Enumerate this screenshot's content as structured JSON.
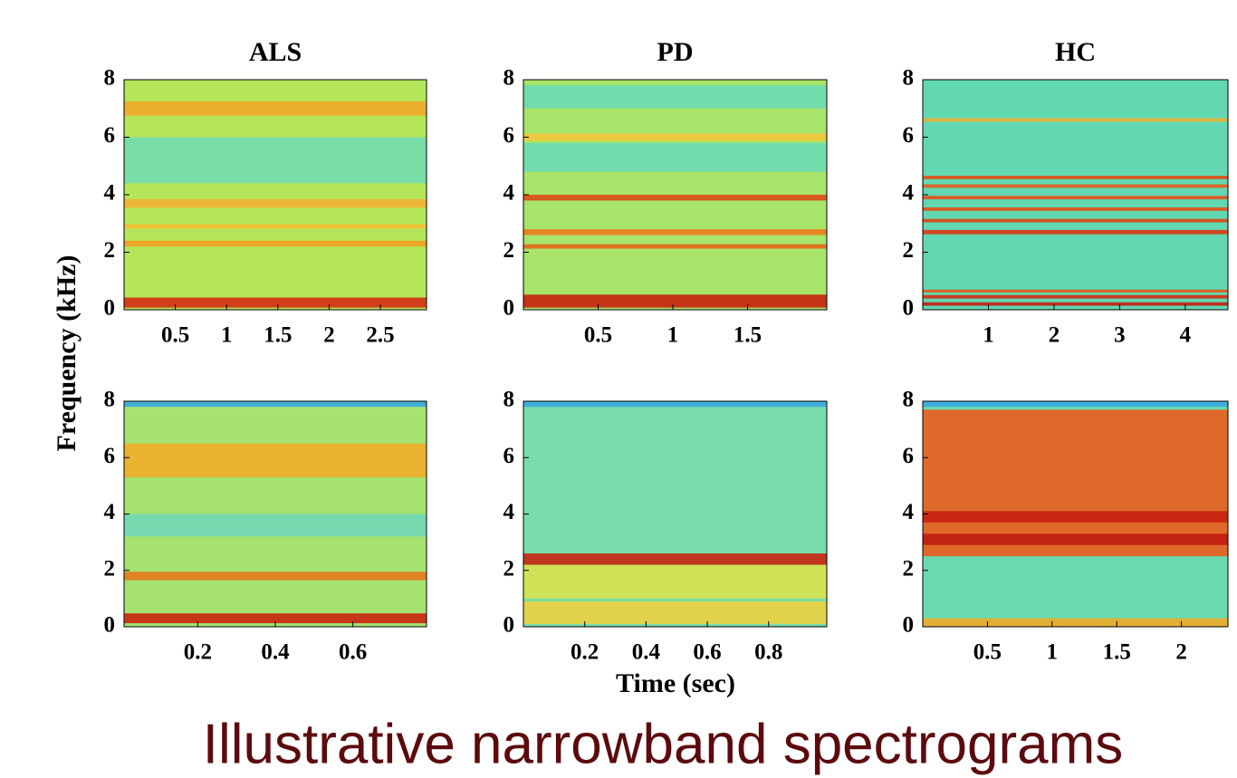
{
  "figure": {
    "ylabel": "Frequency (kHz)",
    "xlabel": "Time (sec)",
    "caption": "Illustrative narrowband spectrograms"
  },
  "chart_data": [
    {
      "type": "spectrogram",
      "title": "ALS",
      "background": "#b5e65a",
      "xlim": [
        0,
        2.95
      ],
      "xticks": [
        0.5,
        1,
        1.5,
        2,
        2.5
      ],
      "ylim": [
        0,
        8
      ],
      "yticks": [
        0,
        2,
        4,
        6,
        8
      ],
      "bands": [
        {
          "freq": 0.25,
          "width": 0.35,
          "color": "#d42c12"
        },
        {
          "freq": 2.3,
          "width": 0.2,
          "color": "#f2a020"
        },
        {
          "freq": 2.9,
          "width": 0.15,
          "color": "#f5c030"
        },
        {
          "freq": 3.7,
          "width": 0.3,
          "color": "#f2b030"
        },
        {
          "freq": 5.2,
          "width": 1.6,
          "color": "#72dcb0"
        },
        {
          "freq": 7.0,
          "width": 0.5,
          "color": "#f2a828"
        }
      ]
    },
    {
      "type": "spectrogram",
      "title": "PD",
      "background": "#a8e36a",
      "xlim": [
        0,
        2.03
      ],
      "xticks": [
        0.5,
        1,
        1.5
      ],
      "ylim": [
        0,
        8
      ],
      "yticks": [
        0,
        2,
        4,
        6,
        8
      ],
      "bands": [
        {
          "freq": 0.3,
          "width": 0.45,
          "color": "#c8200e"
        },
        {
          "freq": 2.2,
          "width": 0.15,
          "color": "#e86418"
        },
        {
          "freq": 2.7,
          "width": 0.2,
          "color": "#ec7a1c"
        },
        {
          "freq": 3.9,
          "width": 0.2,
          "color": "#dc4a14"
        },
        {
          "freq": 5.3,
          "width": 1.0,
          "color": "#6cdab4"
        },
        {
          "freq": 6.0,
          "width": 0.25,
          "color": "#f2c838"
        },
        {
          "freq": 7.4,
          "width": 0.8,
          "color": "#6cdab4"
        }
      ]
    },
    {
      "type": "spectrogram",
      "title": "HC",
      "background": "#62d8b2",
      "xlim": [
        0,
        4.65
      ],
      "xticks": [
        1,
        2,
        3,
        4
      ],
      "ylim": [
        0,
        8
      ],
      "yticks": [
        0,
        2,
        4,
        6,
        8
      ],
      "bands": [
        {
          "freq": 0.2,
          "width": 0.12,
          "color": "#c81c0e"
        },
        {
          "freq": 0.45,
          "width": 0.12,
          "color": "#d42a10"
        },
        {
          "freq": 0.65,
          "width": 0.1,
          "color": "#e85a18"
        },
        {
          "freq": 2.7,
          "width": 0.15,
          "color": "#dc3812"
        },
        {
          "freq": 3.1,
          "width": 0.12,
          "color": "#e04414"
        },
        {
          "freq": 3.5,
          "width": 0.12,
          "color": "#e45016"
        },
        {
          "freq": 3.9,
          "width": 0.12,
          "color": "#e45016"
        },
        {
          "freq": 4.3,
          "width": 0.12,
          "color": "#e85a18"
        },
        {
          "freq": 4.6,
          "width": 0.12,
          "color": "#e05014"
        },
        {
          "freq": 6.6,
          "width": 0.12,
          "color": "#f0b030"
        }
      ]
    },
    {
      "type": "spectrogram",
      "background": "#a6e270",
      "xlim": [
        0.01,
        0.79
      ],
      "xticks": [
        0.2,
        0.4,
        0.6
      ],
      "ylim": [
        0,
        8
      ],
      "yticks": [
        0,
        2,
        4,
        6,
        8
      ],
      "bands": [
        {
          "freq": 0.3,
          "width": 0.35,
          "color": "#cc2410"
        },
        {
          "freq": 1.8,
          "width": 0.3,
          "color": "#e87a1c"
        },
        {
          "freq": 3.6,
          "width": 0.8,
          "color": "#72d8b6"
        },
        {
          "freq": 5.9,
          "width": 1.2,
          "color": "#f2ae2a"
        },
        {
          "freq": 7.9,
          "width": 0.2,
          "color": "#3aa8e0"
        }
      ]
    },
    {
      "type": "spectrogram",
      "title": null,
      "background": "#78dcaa",
      "xlim": [
        0,
        0.99
      ],
      "xticks": [
        0.2,
        0.4,
        0.6,
        0.8
      ],
      "ylim": [
        0,
        8
      ],
      "yticks": [
        0,
        2,
        4,
        6,
        8
      ],
      "bands": [
        {
          "freq": 0.5,
          "width": 0.8,
          "color": "#ecd040"
        },
        {
          "freq": 1.6,
          "width": 1.2,
          "color": "#d8e24c"
        },
        {
          "freq": 2.4,
          "width": 0.4,
          "color": "#c8240e"
        },
        {
          "freq": 7.9,
          "width": 0.2,
          "color": "#3aa8e0"
        }
      ]
    },
    {
      "type": "spectrogram",
      "background": "#6cdab0",
      "xlim": [
        0,
        2.36
      ],
      "xticks": [
        0.5,
        1,
        1.5,
        2
      ],
      "ylim": [
        0,
        8
      ],
      "yticks": [
        0,
        2,
        4,
        6,
        8
      ],
      "bands": [
        {
          "freq": 5.1,
          "width": 5.2,
          "color": "#ec5c1c"
        },
        {
          "freq": 3.1,
          "width": 0.4,
          "color": "#c01c0e"
        },
        {
          "freq": 3.9,
          "width": 0.4,
          "color": "#c8200e"
        },
        {
          "freq": 0.15,
          "width": 0.3,
          "color": "#f0a828"
        },
        {
          "freq": 7.9,
          "width": 0.2,
          "color": "#3aa8e0"
        }
      ]
    }
  ]
}
